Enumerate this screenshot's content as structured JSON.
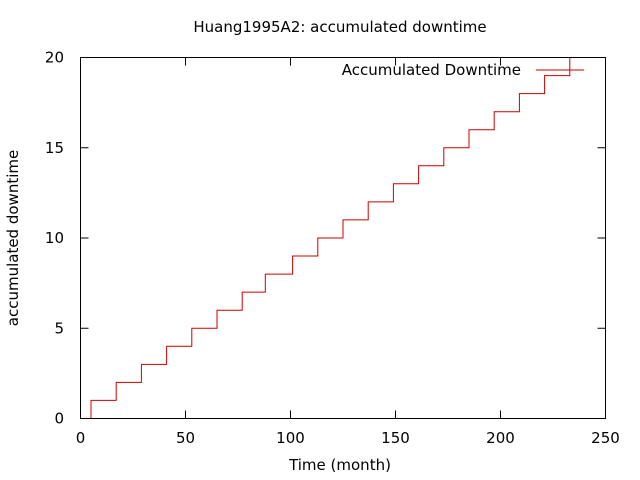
{
  "chart_data": {
    "type": "line",
    "style": "step",
    "title": "Huang1995A2: accumulated downtime",
    "xlabel": "Time (month)",
    "ylabel": "accumulated downtime",
    "xlim": [
      0,
      250
    ],
    "ylim": [
      0,
      20
    ],
    "xticks": [
      0,
      50,
      100,
      150,
      200,
      250
    ],
    "yticks": [
      0,
      5,
      10,
      15,
      20
    ],
    "grid": false,
    "legend_position": "top-right",
    "series": [
      {
        "name": "Accumulated Downtime",
        "color": "#cc0000",
        "x": [
          5,
          17,
          29,
          41,
          53,
          65,
          77,
          88,
          101,
          113,
          125,
          137,
          149,
          161,
          173,
          185,
          197,
          209,
          221,
          233
        ],
        "y": [
          1,
          2,
          3,
          4,
          5,
          6,
          7,
          8,
          9,
          10,
          11,
          12,
          13,
          14,
          15,
          16,
          17,
          18,
          19,
          20
        ]
      }
    ]
  }
}
